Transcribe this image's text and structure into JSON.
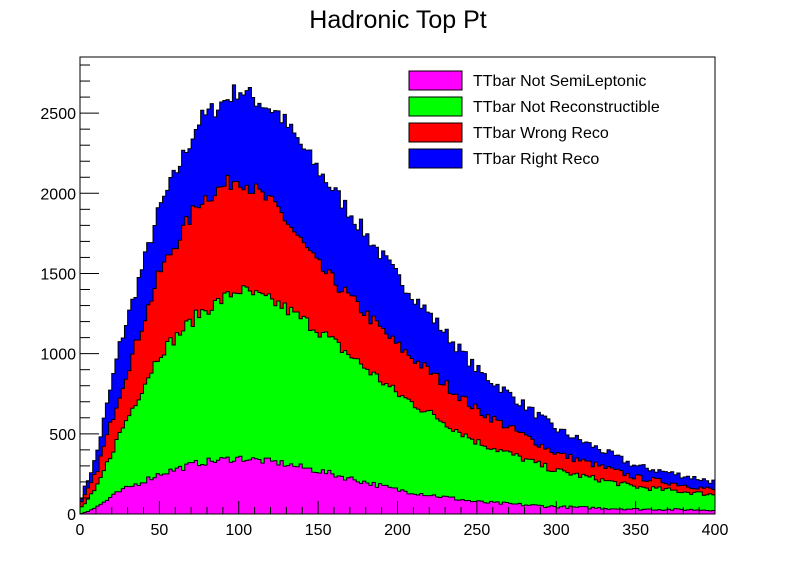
{
  "chart_data": {
    "type": "area",
    "stacked": true,
    "title": "Hadronic Top Pt",
    "xlabel": "",
    "ylabel": "",
    "xlim": [
      0,
      400
    ],
    "ylim": [
      0,
      2850
    ],
    "xticks": [
      0,
      50,
      100,
      150,
      200,
      250,
      300,
      350,
      400
    ],
    "yticks": [
      0,
      500,
      1000,
      1500,
      2000,
      2500
    ],
    "bin_width": 2,
    "legend_position": "top-right",
    "grid": false,
    "series": [
      {
        "name": "TTbar Not SemiLeptonic",
        "color": "#ff00ff",
        "knots_x": [
          0,
          10,
          25,
          50,
          75,
          100,
          125,
          150,
          200,
          250,
          300,
          350,
          400
        ],
        "knots_y": [
          0,
          40,
          140,
          250,
          320,
          350,
          320,
          270,
          150,
          75,
          45,
          30,
          25
        ]
      },
      {
        "name": "TTbar Not Reconstructible",
        "color": "#00ff00",
        "knots_x": [
          0,
          10,
          25,
          50,
          75,
          100,
          125,
          150,
          200,
          250,
          300,
          350,
          400
        ],
        "knots_y": [
          30,
          150,
          500,
          1000,
          1250,
          1400,
          1310,
          1150,
          750,
          450,
          270,
          170,
          120
        ]
      },
      {
        "name": "TTbar Wrong Reco",
        "color": "#ff0000",
        "knots_x": [
          0,
          10,
          25,
          50,
          75,
          100,
          125,
          150,
          200,
          250,
          300,
          350,
          400
        ],
        "knots_y": [
          50,
          250,
          750,
          1500,
          1950,
          2100,
          1900,
          1550,
          1050,
          650,
          380,
          230,
          150
        ]
      },
      {
        "name": "TTbar Right Reco",
        "color": "#0000ff",
        "knots_x": [
          0,
          10,
          25,
          50,
          75,
          100,
          125,
          150,
          200,
          250,
          300,
          350,
          400
        ],
        "knots_y": [
          80,
          350,
          1050,
          1900,
          2450,
          2650,
          2500,
          2150,
          1480,
          900,
          530,
          300,
          200
        ]
      }
    ]
  }
}
